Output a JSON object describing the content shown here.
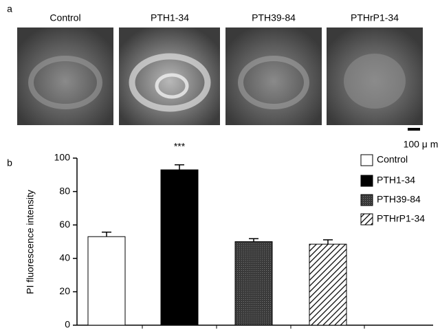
{
  "panel_a": {
    "label": "a",
    "images": [
      "Control",
      "PTH1-34",
      "PTH39-84",
      "PTHrP1-34"
    ],
    "scale_bar": "100 μ m"
  },
  "panel_b_label": "b",
  "chart_data": {
    "type": "bar",
    "ylabel": "PI fluorescence intensity",
    "categories": [
      "Control",
      "PTH1-34",
      "PTH39-84",
      "PTHrP1-34"
    ],
    "values": [
      53,
      93,
      50,
      48.5
    ],
    "errors": [
      2.7,
      3,
      1.8,
      2.6
    ],
    "colors": [
      "#ffffff",
      "#000000",
      "#4a4a4a",
      "#ffffff"
    ],
    "patterns": [
      "solid",
      "solid",
      "dots",
      "hatch"
    ],
    "annotations": [
      {
        "text": "***",
        "category": 1
      }
    ],
    "ylim": [
      0,
      100
    ],
    "yticks": [
      0,
      20,
      40,
      60,
      80,
      100
    ],
    "grid": false
  }
}
